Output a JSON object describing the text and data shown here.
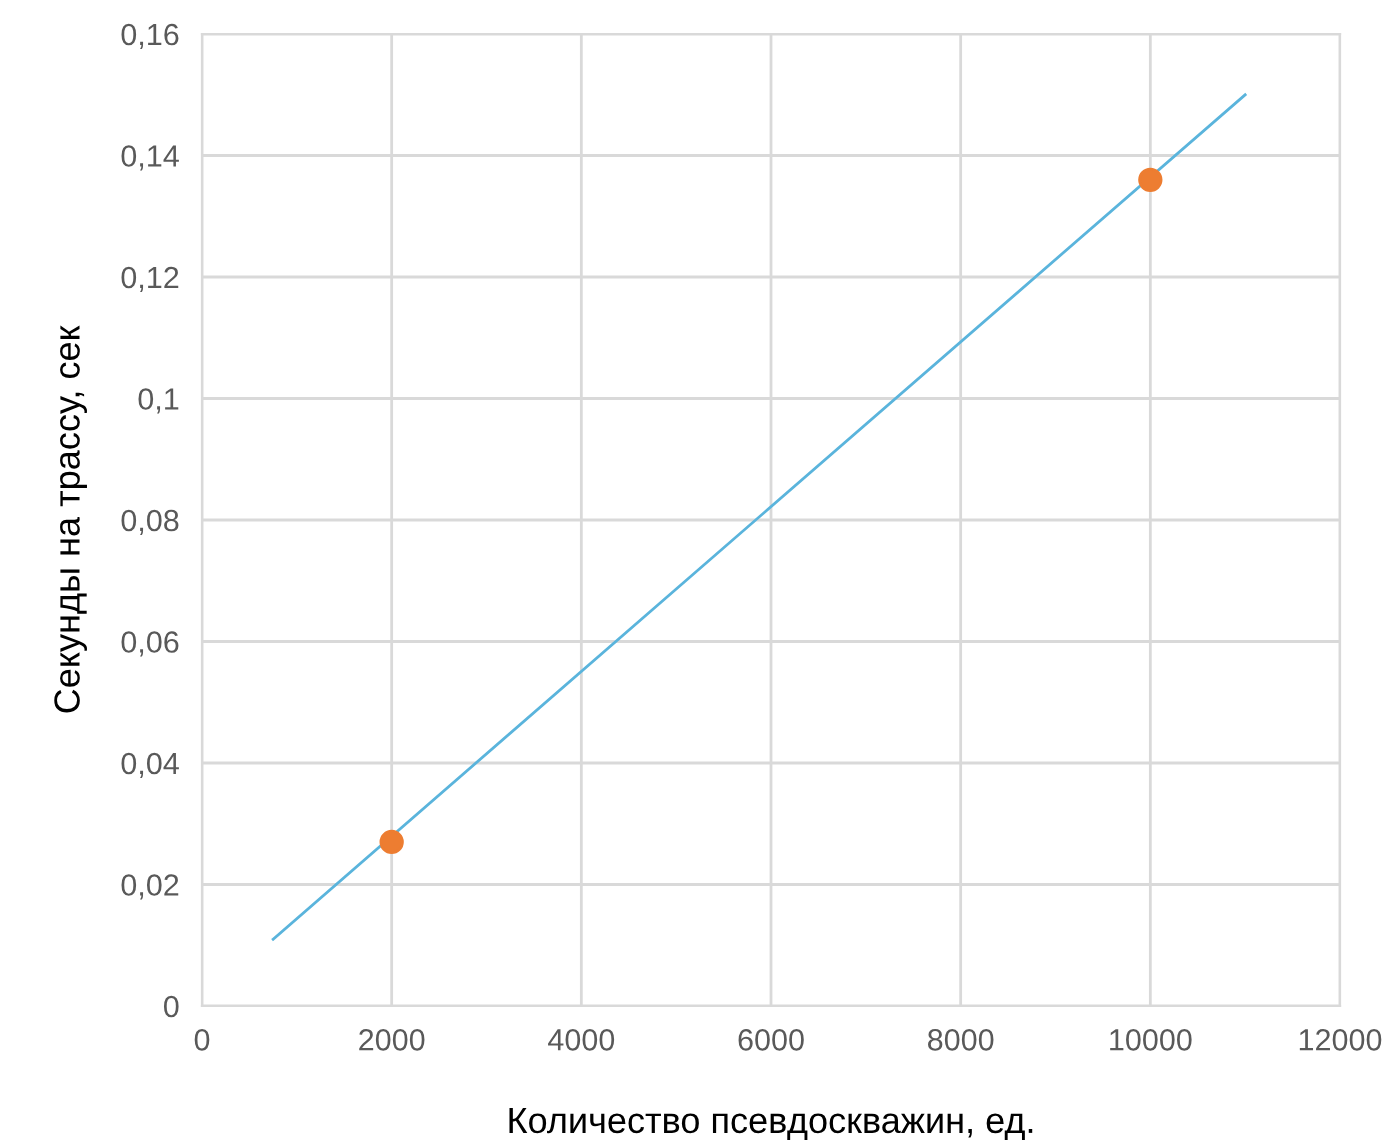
{
  "chart_data": {
    "type": "scatter",
    "xlabel": "Количество псевдоскважин, ед.",
    "ylabel": "Секунды на трассу, сек",
    "series": [
      {
        "type": "line",
        "color": "#5ab4dc",
        "x": [
          750,
          11000
        ],
        "values": [
          0.011,
          0.15
        ],
        "marker": "none"
      },
      {
        "color": "#ed7d31",
        "x": [
          2000,
          10000
        ],
        "values": [
          0.027,
          0.136
        ],
        "marker": "circle"
      }
    ],
    "xlim": [
      0,
      12000
    ],
    "xticks": [
      0,
      2000,
      4000,
      6000,
      8000,
      10000,
      12000
    ],
    "ylim": [
      0,
      0.16
    ],
    "yticks": [
      0,
      {
        "value": 0.02,
        "label": "0,02"
      },
      {
        "value": 0.04,
        "label": "0,04"
      },
      {
        "value": 0.06,
        "label": "0,06"
      },
      {
        "value": 0.08,
        "label": "0,08"
      },
      {
        "value": 0.1,
        "label": "0,1"
      },
      {
        "value": 0.12,
        "label": "0,12"
      },
      {
        "value": 0.14,
        "label": "0,14"
      },
      {
        "value": 0.16,
        "label": "0,16"
      }
    ],
    "grid": true,
    "legend": false
  }
}
